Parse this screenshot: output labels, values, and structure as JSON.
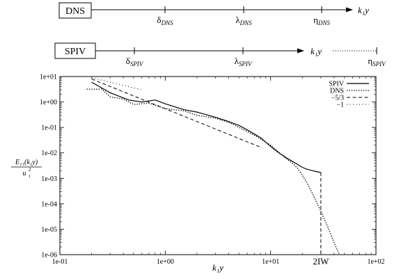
{
  "scales": [
    {
      "box_label": "DNS",
      "marks": [
        {
          "symbol": "δ",
          "sub": "DNS",
          "value": 2.7
        },
        {
          "symbol": "λ",
          "sub": "DNS",
          "value": 9.0
        },
        {
          "symbol": "η",
          "sub": "DNS",
          "value": 50
        }
      ],
      "axis_label": "k₁y"
    },
    {
      "box_label": "SPIV",
      "marks": [
        {
          "symbol": "δ",
          "sub": "SPIV",
          "value": 0.52
        },
        {
          "symbol": "λ",
          "sub": "SPIV",
          "value": 9.0
        },
        {
          "symbol": "η",
          "sub": "SPIV",
          "value": 220
        }
      ],
      "axis_label": "k₁y"
    }
  ],
  "chart_data": {
    "type": "line",
    "xlabel": "k₁y",
    "ylabel": "E₁₁(k₁y) / u_τ²",
    "ylabel_num": "E₁₁(k₁y)",
    "ylabel_den": "u",
    "ylabel_den_sub": "τ",
    "ylabel_den_sup": "2",
    "xscale": "log",
    "yscale": "log",
    "xlim": [
      0.1,
      100
    ],
    "ylim": [
      1e-06,
      10
    ],
    "xticks": [
      "1e-01",
      "1e+00",
      "1e+01",
      "1e+02"
    ],
    "yticks": [
      "1e-06",
      "1e-05",
      "1e-04",
      "1e-03",
      "1e-02",
      "1e-01",
      "1e+00",
      "1e+01"
    ],
    "legend_position": "top-right",
    "series": [
      {
        "name": "SPIV",
        "style": "solid",
        "x": [
          0.2,
          0.3,
          0.45,
          0.6,
          0.8,
          1.0,
          1.5,
          2.0,
          3.0,
          4.0,
          5.0,
          6.0,
          8.0,
          10,
          12,
          15,
          18,
          20,
          22,
          25,
          28,
          30
        ],
        "y": [
          6.0,
          2.3,
          1.2,
          1.0,
          1.2,
          0.85,
          0.5,
          0.4,
          0.25,
          0.17,
          0.12,
          0.08,
          0.04,
          0.018,
          0.01,
          0.0055,
          0.0035,
          0.0027,
          0.0023,
          0.002,
          0.0018,
          0.0017
        ]
      },
      {
        "name": "DNS",
        "style": "dotted",
        "x": [
          0.18,
          0.25,
          0.3,
          0.4,
          0.5,
          0.7,
          1.0,
          1.5,
          2.0,
          3.0,
          4.0,
          5.0,
          7.0,
          10,
          14,
          16,
          18,
          20,
          22,
          25,
          30,
          35,
          40,
          45
        ],
        "y": [
          3.2,
          3.2,
          1.6,
          1.3,
          0.8,
          0.9,
          0.55,
          0.45,
          0.3,
          0.23,
          0.16,
          0.1,
          0.05,
          0.02,
          0.006,
          0.004,
          0.0025,
          0.0013,
          0.0007,
          0.00025,
          5e-05,
          1.2e-05,
          3e-06,
          1e-06
        ]
      },
      {
        "name": "−5/3",
        "style": "dashed",
        "x": [
          0.2,
          8.0
        ],
        "y": [
          8.0,
          0.0168
        ]
      },
      {
        "name": "−1",
        "style": "loose-dotted",
        "x": [
          0.2,
          0.6
        ],
        "y": [
          9.0,
          3.0
        ]
      }
    ],
    "annotations": [
      {
        "text": "2IW",
        "x": 30,
        "style": "dashed vertical line from the SPIV curve down to the x axis"
      }
    ]
  }
}
